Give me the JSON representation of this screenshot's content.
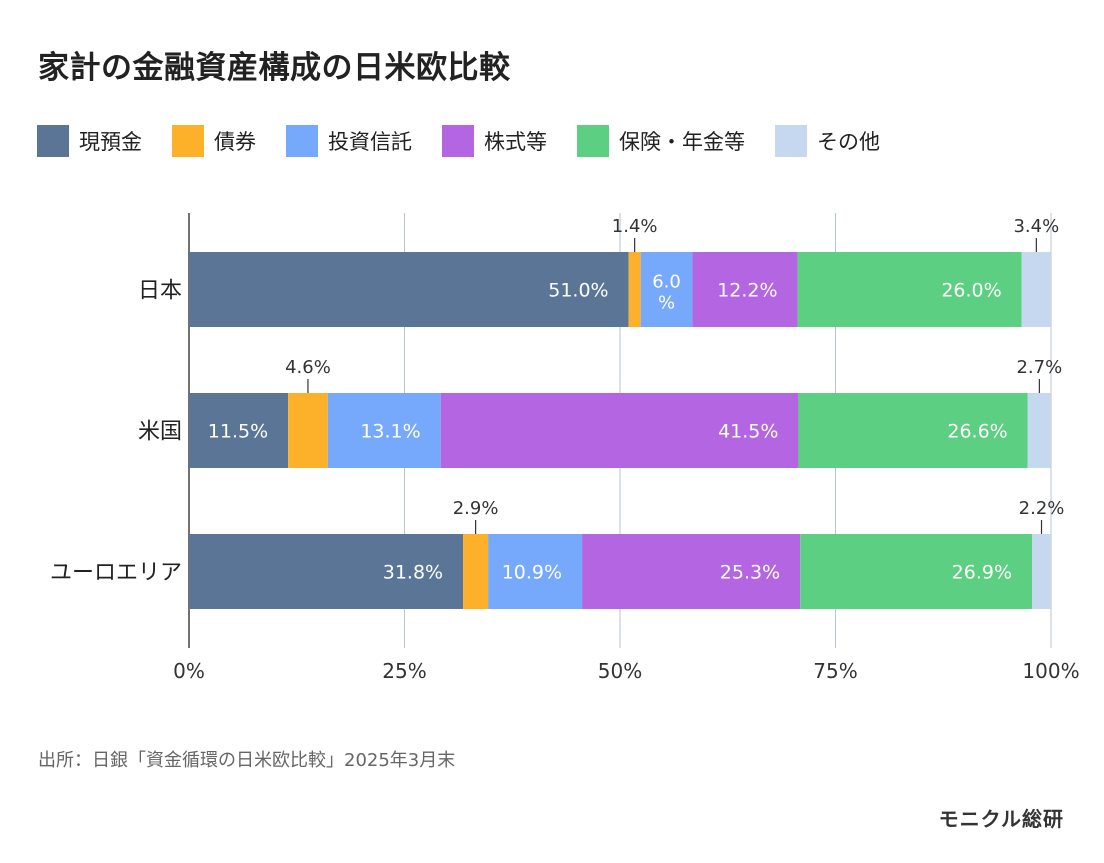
{
  "chart_data": {
    "type": "bar",
    "orientation": "horizontal",
    "stacked": true,
    "title": "家計の金融資産構成の日米欧比較",
    "categories": [
      "日本",
      "米国",
      "ユーロエリア"
    ],
    "series": [
      {
        "name": "現預金",
        "color": "#5a7595",
        "values": [
          51.0,
          11.5,
          31.8
        ],
        "labels": [
          "51.0%",
          "11.5%",
          "31.8%"
        ]
      },
      {
        "name": "債券",
        "color": "#fdb02a",
        "values": [
          1.4,
          4.6,
          2.9
        ],
        "labels": [
          "1.4%",
          "4.6%",
          "2.9%"
        ]
      },
      {
        "name": "投資信託",
        "color": "#76a9fb",
        "values": [
          6.0,
          13.1,
          10.9
        ],
        "labels": [
          "6.0%",
          "13.1%",
          "10.9%"
        ]
      },
      {
        "name": "株式等",
        "color": "#b465e2",
        "values": [
          12.2,
          41.5,
          25.3
        ],
        "labels": [
          "12.2%",
          "41.5%",
          "25.3%"
        ]
      },
      {
        "name": "保険・年金等",
        "color": "#5ccf83",
        "values": [
          26.0,
          26.6,
          26.9
        ],
        "labels": [
          "26.0%",
          "26.6%",
          "26.9%"
        ]
      },
      {
        "name": "その他",
        "color": "#c5d8f0",
        "values": [
          3.4,
          2.7,
          2.2
        ],
        "labels": [
          "3.4%",
          "2.7%",
          "2.2%"
        ]
      }
    ],
    "x_ticks": [
      "0%",
      "25%",
      "50%",
      "75%",
      "100%"
    ],
    "xlim": [
      0,
      100
    ],
    "legend_position": "top"
  },
  "source": "出所：日銀「資金循環の日米欧比較」2025年3月末",
  "brand": "モニクル総研"
}
